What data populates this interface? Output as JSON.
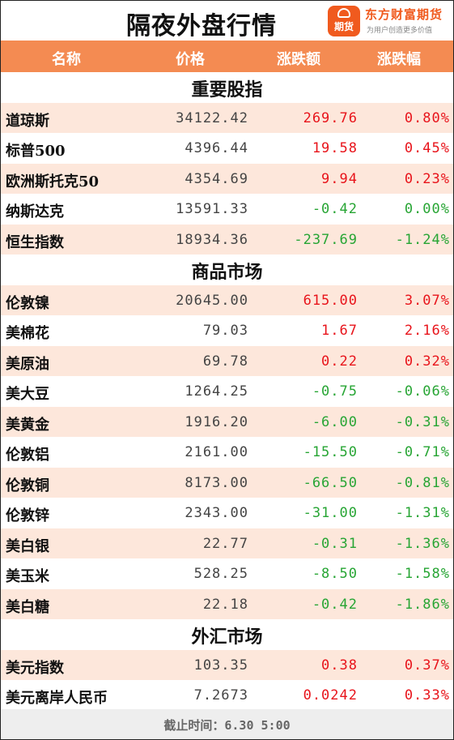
{
  "title": "隔夜外盘行情",
  "brand": {
    "name": "东方财富期货",
    "tagline": "为用户创造更多价值",
    "logo_text": "期货",
    "logo_icon": "speech-bubble-icon"
  },
  "header": {
    "name": "名称",
    "price": "价格",
    "change": "涨跌额",
    "pct": "涨跌幅"
  },
  "colors": {
    "header_bg": "#f48b52",
    "row_alt_bg": "#fde7db",
    "up": "#e8141b",
    "down": "#27a534",
    "brand": "#f05a1e"
  },
  "sections": [
    {
      "title": "重要股指",
      "rows": [
        {
          "name": "道琼斯",
          "price": "34122.42",
          "change": "269.76",
          "pct": "0.80%",
          "dir": "up"
        },
        {
          "name": "标普500",
          "price": "4396.44",
          "change": "19.58",
          "pct": "0.45%",
          "dir": "up"
        },
        {
          "name": "欧洲斯托克50",
          "price": "4354.69",
          "change": "9.94",
          "pct": "0.23%",
          "dir": "up"
        },
        {
          "name": "纳斯达克",
          "price": "13591.33",
          "change": "-0.42",
          "pct": "0.00%",
          "dir": "down"
        },
        {
          "name": "恒生指数",
          "price": "18934.36",
          "change": "-237.69",
          "pct": "-1.24%",
          "dir": "down"
        }
      ]
    },
    {
      "title": "商品市场",
      "rows": [
        {
          "name": "伦敦镍",
          "price": "20645.00",
          "change": "615.00",
          "pct": "3.07%",
          "dir": "up"
        },
        {
          "name": "美棉花",
          "price": "79.03",
          "change": "1.67",
          "pct": "2.16%",
          "dir": "up"
        },
        {
          "name": "美原油",
          "price": "69.78",
          "change": "0.22",
          "pct": "0.32%",
          "dir": "up"
        },
        {
          "name": "美大豆",
          "price": "1264.25",
          "change": "-0.75",
          "pct": "-0.06%",
          "dir": "down"
        },
        {
          "name": "美黄金",
          "price": "1916.20",
          "change": "-6.00",
          "pct": "-0.31%",
          "dir": "down"
        },
        {
          "name": "伦敦铝",
          "price": "2161.00",
          "change": "-15.50",
          "pct": "-0.71%",
          "dir": "down"
        },
        {
          "name": "伦敦铜",
          "price": "8173.00",
          "change": "-66.50",
          "pct": "-0.81%",
          "dir": "down"
        },
        {
          "name": "伦敦锌",
          "price": "2343.00",
          "change": "-31.00",
          "pct": "-1.31%",
          "dir": "down"
        },
        {
          "name": "美白银",
          "price": "22.77",
          "change": "-0.31",
          "pct": "-1.36%",
          "dir": "down"
        },
        {
          "name": "美玉米",
          "price": "528.25",
          "change": "-8.50",
          "pct": "-1.58%",
          "dir": "down"
        },
        {
          "name": "美白糖",
          "price": "22.18",
          "change": "-0.42",
          "pct": "-1.86%",
          "dir": "down"
        }
      ]
    },
    {
      "title": "外汇市场",
      "rows": [
        {
          "name": "美元指数",
          "price": "103.35",
          "change": "0.38",
          "pct": "0.37%",
          "dir": "up"
        },
        {
          "name": "美元离岸人民币",
          "price": "7.2673",
          "change": "0.0242",
          "pct": "0.33%",
          "dir": "up"
        }
      ]
    }
  ],
  "footer": {
    "deadline": "截止时间：6.30 5:00"
  }
}
